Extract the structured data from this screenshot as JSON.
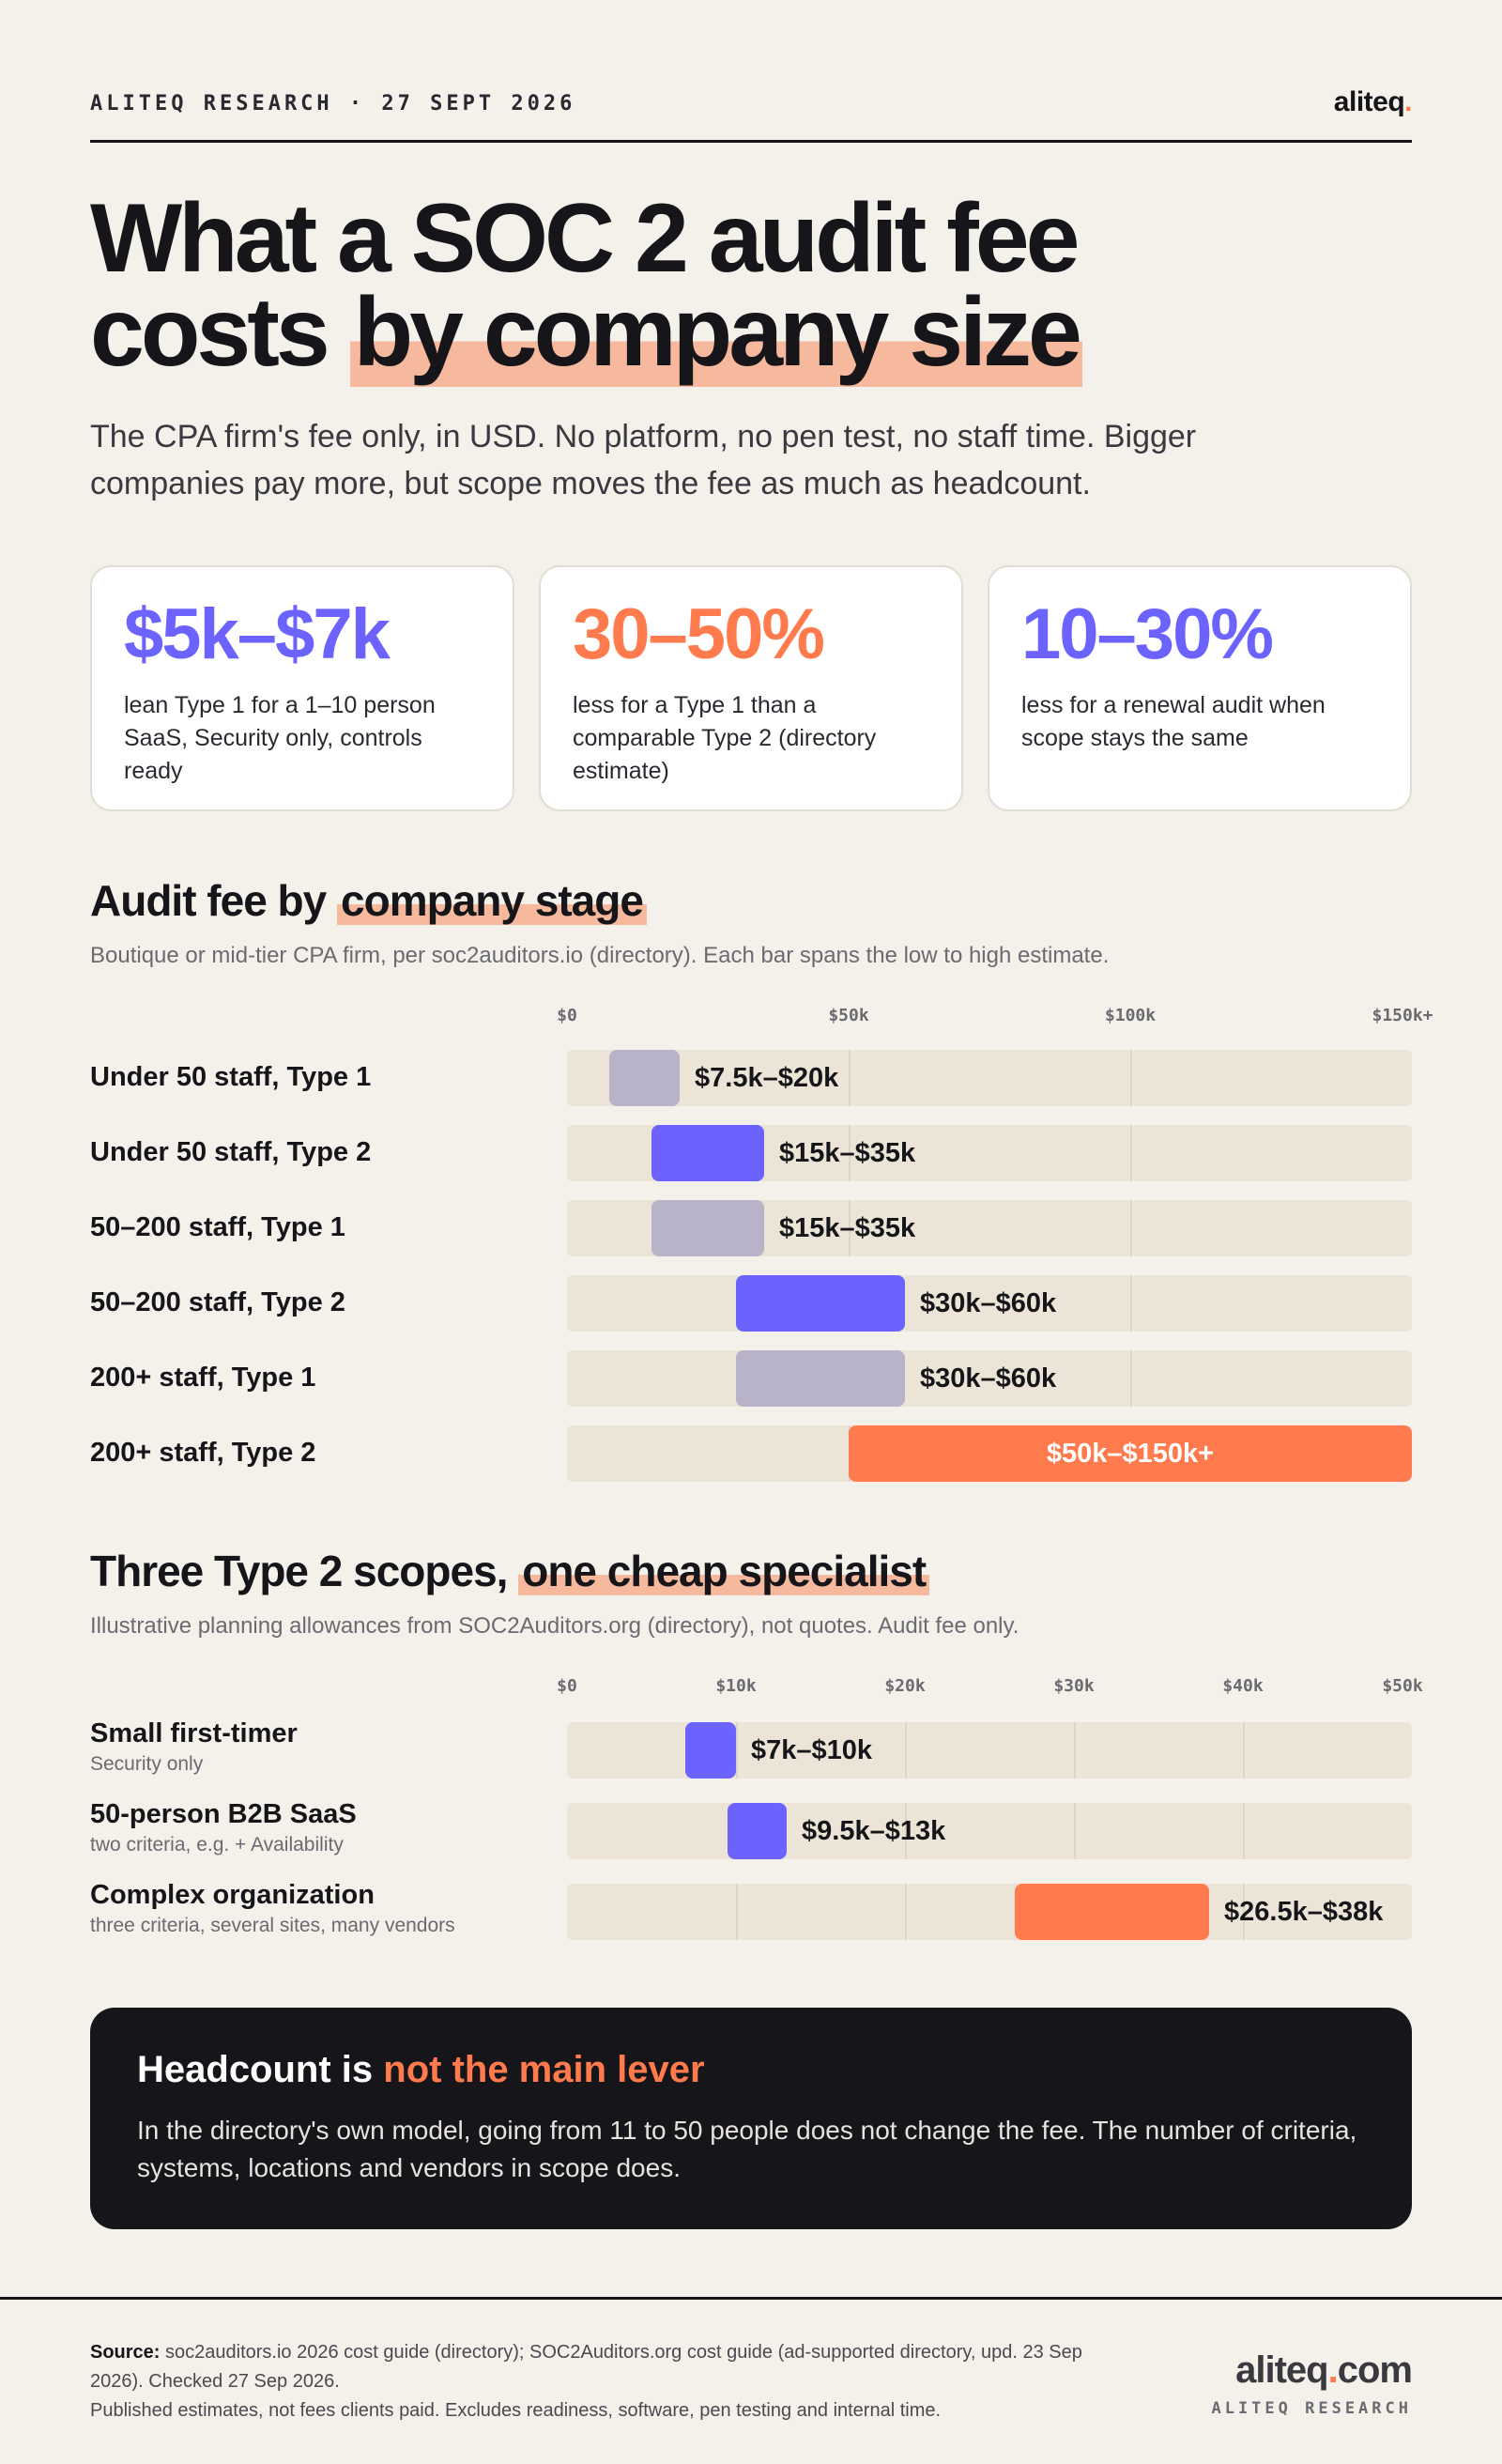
{
  "header": {
    "kicker": "ALITEQ RESEARCH · 27 SEPT 2026",
    "brand": "aliteq",
    "brand_dot": "."
  },
  "title": {
    "line1": "What a SOC 2 audit fee",
    "line2_plain": "costs ",
    "line2_highlight": "by company size"
  },
  "lede": "The CPA firm's fee only, in USD. No platform, no pen test, no staff time. Bigger companies pay more, but scope moves the fee as much as headcount.",
  "stats": [
    {
      "value": "$5k–$7k",
      "desc": "lean Type 1 for a 1–10 person SaaS, Security only, controls ready",
      "color": "#6c63ff"
    },
    {
      "value": "30–50%",
      "desc": "less for a Type 1 than a comparable Type 2 (directory estimate)",
      "color": "#ff7a4d"
    },
    {
      "value": "10–30%",
      "desc": "less for a renewal audit when scope stays the same",
      "color": "#6c63ff"
    }
  ],
  "section1": {
    "title_plain": "Audit fee by ",
    "title_highlight": "company stage",
    "subtitle": "Boutique or mid-tier CPA firm, per soc2auditors.io (directory). Each bar spans the low to high estimate."
  },
  "section2": {
    "title_plain": "Three Type 2 scopes, ",
    "title_highlight": "one cheap specialist",
    "subtitle": "Illustrative planning allowances from SOC2Auditors.org (directory), not quotes. Audit fee only."
  },
  "callout": {
    "title_plain": "Headcount is ",
    "title_highlight": "not the main lever",
    "body": "In the directory's own model, going from 11 to 50 people does not change the fee. The number of criteria, systems, locations and vendors in scope does."
  },
  "footer": {
    "source_label": "Source:",
    "source_text": "soc2auditors.io 2026 cost guide (directory); SOC2Auditors.org cost guide (ad-supported directory, upd. 23 Sep 2026). Checked 27 Sep 2026.",
    "note": "Published estimates, not fees clients paid. Excludes readiness, software, pen testing and internal time.",
    "brand_url": "aliteq",
    "brand_url_dot": ".",
    "brand_url_tail": "com",
    "brand_tag": "ALITEQ RESEARCH"
  },
  "colors": {
    "accent_purple": "#6c63ff",
    "accent_orange": "#ff7a4d",
    "type1_gray": "#b8b3c8",
    "track": "#ebe4d7",
    "highlight": "#f7b99e"
  },
  "chart_data": [
    {
      "type": "bar",
      "orientation": "horizontal-range",
      "title": "Audit fee by company stage",
      "unit": "USD",
      "xlim": [
        0,
        150000
      ],
      "ticks": [
        {
          "value": 0,
          "label": "$0"
        },
        {
          "value": 50000,
          "label": "$50k"
        },
        {
          "value": 100000,
          "label": "$100k"
        },
        {
          "value": 150000,
          "label": "$150k+"
        }
      ],
      "grid": true,
      "rows": [
        {
          "category": "Under 50 staff, Type 1",
          "low": 7500,
          "high": 20000,
          "label": "$7.5k–$20k",
          "color": "#b8b3c8"
        },
        {
          "category": "Under 50 staff, Type 2",
          "low": 15000,
          "high": 35000,
          "label": "$15k–$35k",
          "color": "#6c63ff"
        },
        {
          "category": "50–200 staff, Type 1",
          "low": 15000,
          "high": 35000,
          "label": "$15k–$35k",
          "color": "#b8b3c8"
        },
        {
          "category": "50–200 staff, Type 2",
          "low": 30000,
          "high": 60000,
          "label": "$30k–$60k",
          "color": "#6c63ff"
        },
        {
          "category": "200+ staff, Type 1",
          "low": 30000,
          "high": 60000,
          "label": "$30k–$60k",
          "color": "#b8b3c8"
        },
        {
          "category": "200+ staff, Type 2",
          "low": 50000,
          "high": 150000,
          "label": "$50k–$150k+",
          "color": "#ff7a4d",
          "label_inside": true
        }
      ]
    },
    {
      "type": "bar",
      "orientation": "horizontal-range",
      "title": "Three Type 2 scopes, one cheap specialist",
      "unit": "USD",
      "xlim": [
        0,
        50000
      ],
      "ticks": [
        {
          "value": 0,
          "label": "$0"
        },
        {
          "value": 10000,
          "label": "$10k"
        },
        {
          "value": 20000,
          "label": "$20k"
        },
        {
          "value": 30000,
          "label": "$30k"
        },
        {
          "value": 40000,
          "label": "$40k"
        },
        {
          "value": 50000,
          "label": "$50k"
        }
      ],
      "grid": true,
      "rows": [
        {
          "category": "Small first-timer",
          "note": "Security only",
          "low": 7000,
          "high": 10000,
          "label": "$7k–$10k",
          "color": "#6c63ff"
        },
        {
          "category": "50-person B2B SaaS",
          "note": "two criteria, e.g. + Availability",
          "low": 9500,
          "high": 13000,
          "label": "$9.5k–$13k",
          "color": "#6c63ff"
        },
        {
          "category": "Complex organization",
          "note": "three criteria, several sites, many vendors",
          "low": 26500,
          "high": 38000,
          "label": "$26.5k–$38k",
          "color": "#ff7a4d"
        }
      ]
    }
  ]
}
